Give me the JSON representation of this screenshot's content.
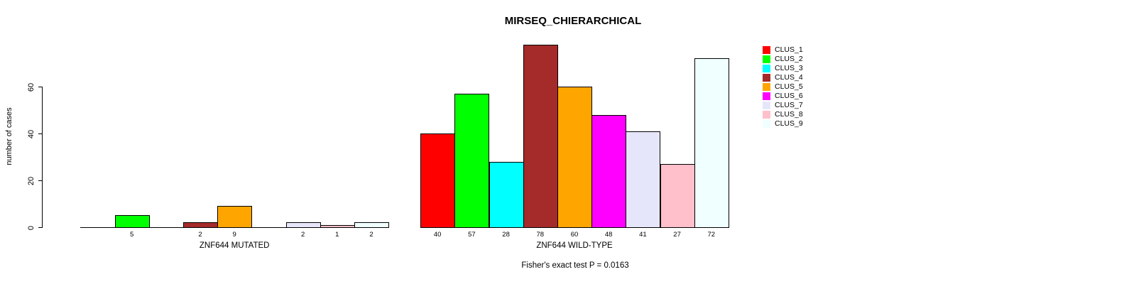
{
  "chart_data": {
    "type": "bar",
    "title": "MIRSEQ_CHIERARCHICAL",
    "ylabel": "number of cases",
    "xlabel": "",
    "ylim": [
      0,
      78
    ],
    "yticks": [
      0,
      20,
      40,
      60
    ],
    "grid": false,
    "legend_position": "right",
    "categories": [
      "ZNF644 MUTATED",
      "ZNF644 WILD-TYPE"
    ],
    "series": [
      {
        "name": "CLUS_1",
        "color": "#FF0000",
        "values": [
          0,
          40
        ]
      },
      {
        "name": "CLUS_2",
        "color": "#00FF00",
        "values": [
          5,
          57
        ]
      },
      {
        "name": "CLUS_3",
        "color": "#00FFFF",
        "values": [
          0,
          28
        ]
      },
      {
        "name": "CLUS_4",
        "color": "#A52A2A",
        "values": [
          2,
          78
        ]
      },
      {
        "name": "CLUS_5",
        "color": "#FFA500",
        "values": [
          9,
          60
        ]
      },
      {
        "name": "CLUS_6",
        "color": "#FF00FF",
        "values": [
          0,
          48
        ]
      },
      {
        "name": "CLUS_7",
        "color": "#E6E6FA",
        "values": [
          2,
          41
        ]
      },
      {
        "name": "CLUS_8",
        "color": "#FFC0CB",
        "values": [
          1,
          27
        ]
      },
      {
        "name": "CLUS_9",
        "color": "#F0FFFF",
        "values": [
          2,
          72
        ]
      }
    ],
    "bar_value_labels": "shown below each nonzero bar",
    "annotation": "Fisher's exact test P = 0.0163",
    "axis_color": "#000000",
    "background_color": "#FFFFFF"
  }
}
